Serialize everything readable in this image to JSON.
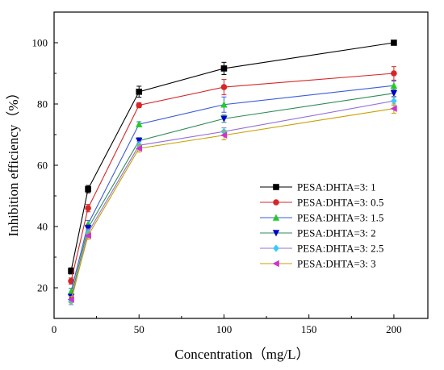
{
  "chart_data": {
    "type": "line",
    "xlabel": "Concentration（mg/L）",
    "ylabel": "Inhibition efficiency（%）",
    "xlim": [
      0,
      220
    ],
    "ylim": [
      10,
      110
    ],
    "xticks": [
      "0",
      "50",
      "100",
      "150",
      "200"
    ],
    "yticks": [
      "20",
      "40",
      "60",
      "80",
      "100"
    ],
    "grid": false,
    "legend_position": "bottom-right",
    "x": [
      10,
      20,
      50,
      100,
      200
    ],
    "series": [
      {
        "name": "PESA:DHTA=3: 1",
        "values": [
          25.5,
          52.2,
          84.0,
          91.6,
          100.0
        ],
        "errors": [
          1.0,
          1.2,
          1.8,
          2.0,
          0.4
        ],
        "color": "#000000",
        "marker": "square"
      },
      {
        "name": "PESA:DHTA=3: 0.5",
        "values": [
          22.2,
          46.0,
          79.6,
          85.5,
          90.0
        ],
        "errors": [
          1.0,
          1.2,
          0.8,
          2.5,
          2.2
        ],
        "color": "#d62728",
        "marker": "circle"
      },
      {
        "name": "PESA:DHTA=3: 1.5",
        "values": [
          18.8,
          40.8,
          73.4,
          79.8,
          86.0
        ],
        "errors": [
          1.0,
          1.2,
          0.8,
          2.5,
          1.5
        ],
        "color": "#3b5bdb",
        "marker": "triangle-up"
      },
      {
        "name": "PESA:DHTA=3: 2",
        "values": [
          17.0,
          39.5,
          68.0,
          75.2,
          83.5
        ],
        "errors": [
          1.0,
          1.2,
          1.0,
          1.2,
          1.2
        ],
        "color": "#2e8b57",
        "marker": "triangle-down"
      },
      {
        "name": "PESA:DHTA=3: 2.5",
        "values": [
          15.5,
          38.0,
          66.5,
          71.0,
          81.0
        ],
        "errors": [
          1.0,
          1.2,
          1.2,
          1.2,
          1.5
        ],
        "color": "#9370db",
        "marker": "diamond"
      },
      {
        "name": "PESA:DHTA=3: 3",
        "values": [
          16.2,
          37.0,
          65.5,
          69.8,
          78.5
        ],
        "errors": [
          1.0,
          1.2,
          1.2,
          1.5,
          1.5
        ],
        "color": "#c8a000",
        "marker": "triangle-left"
      }
    ],
    "legend_marker_colors": [
      "#000000",
      "#d62728",
      "#22cc22",
      "#0000cc",
      "#33ccff",
      "#cc33cc"
    ]
  }
}
